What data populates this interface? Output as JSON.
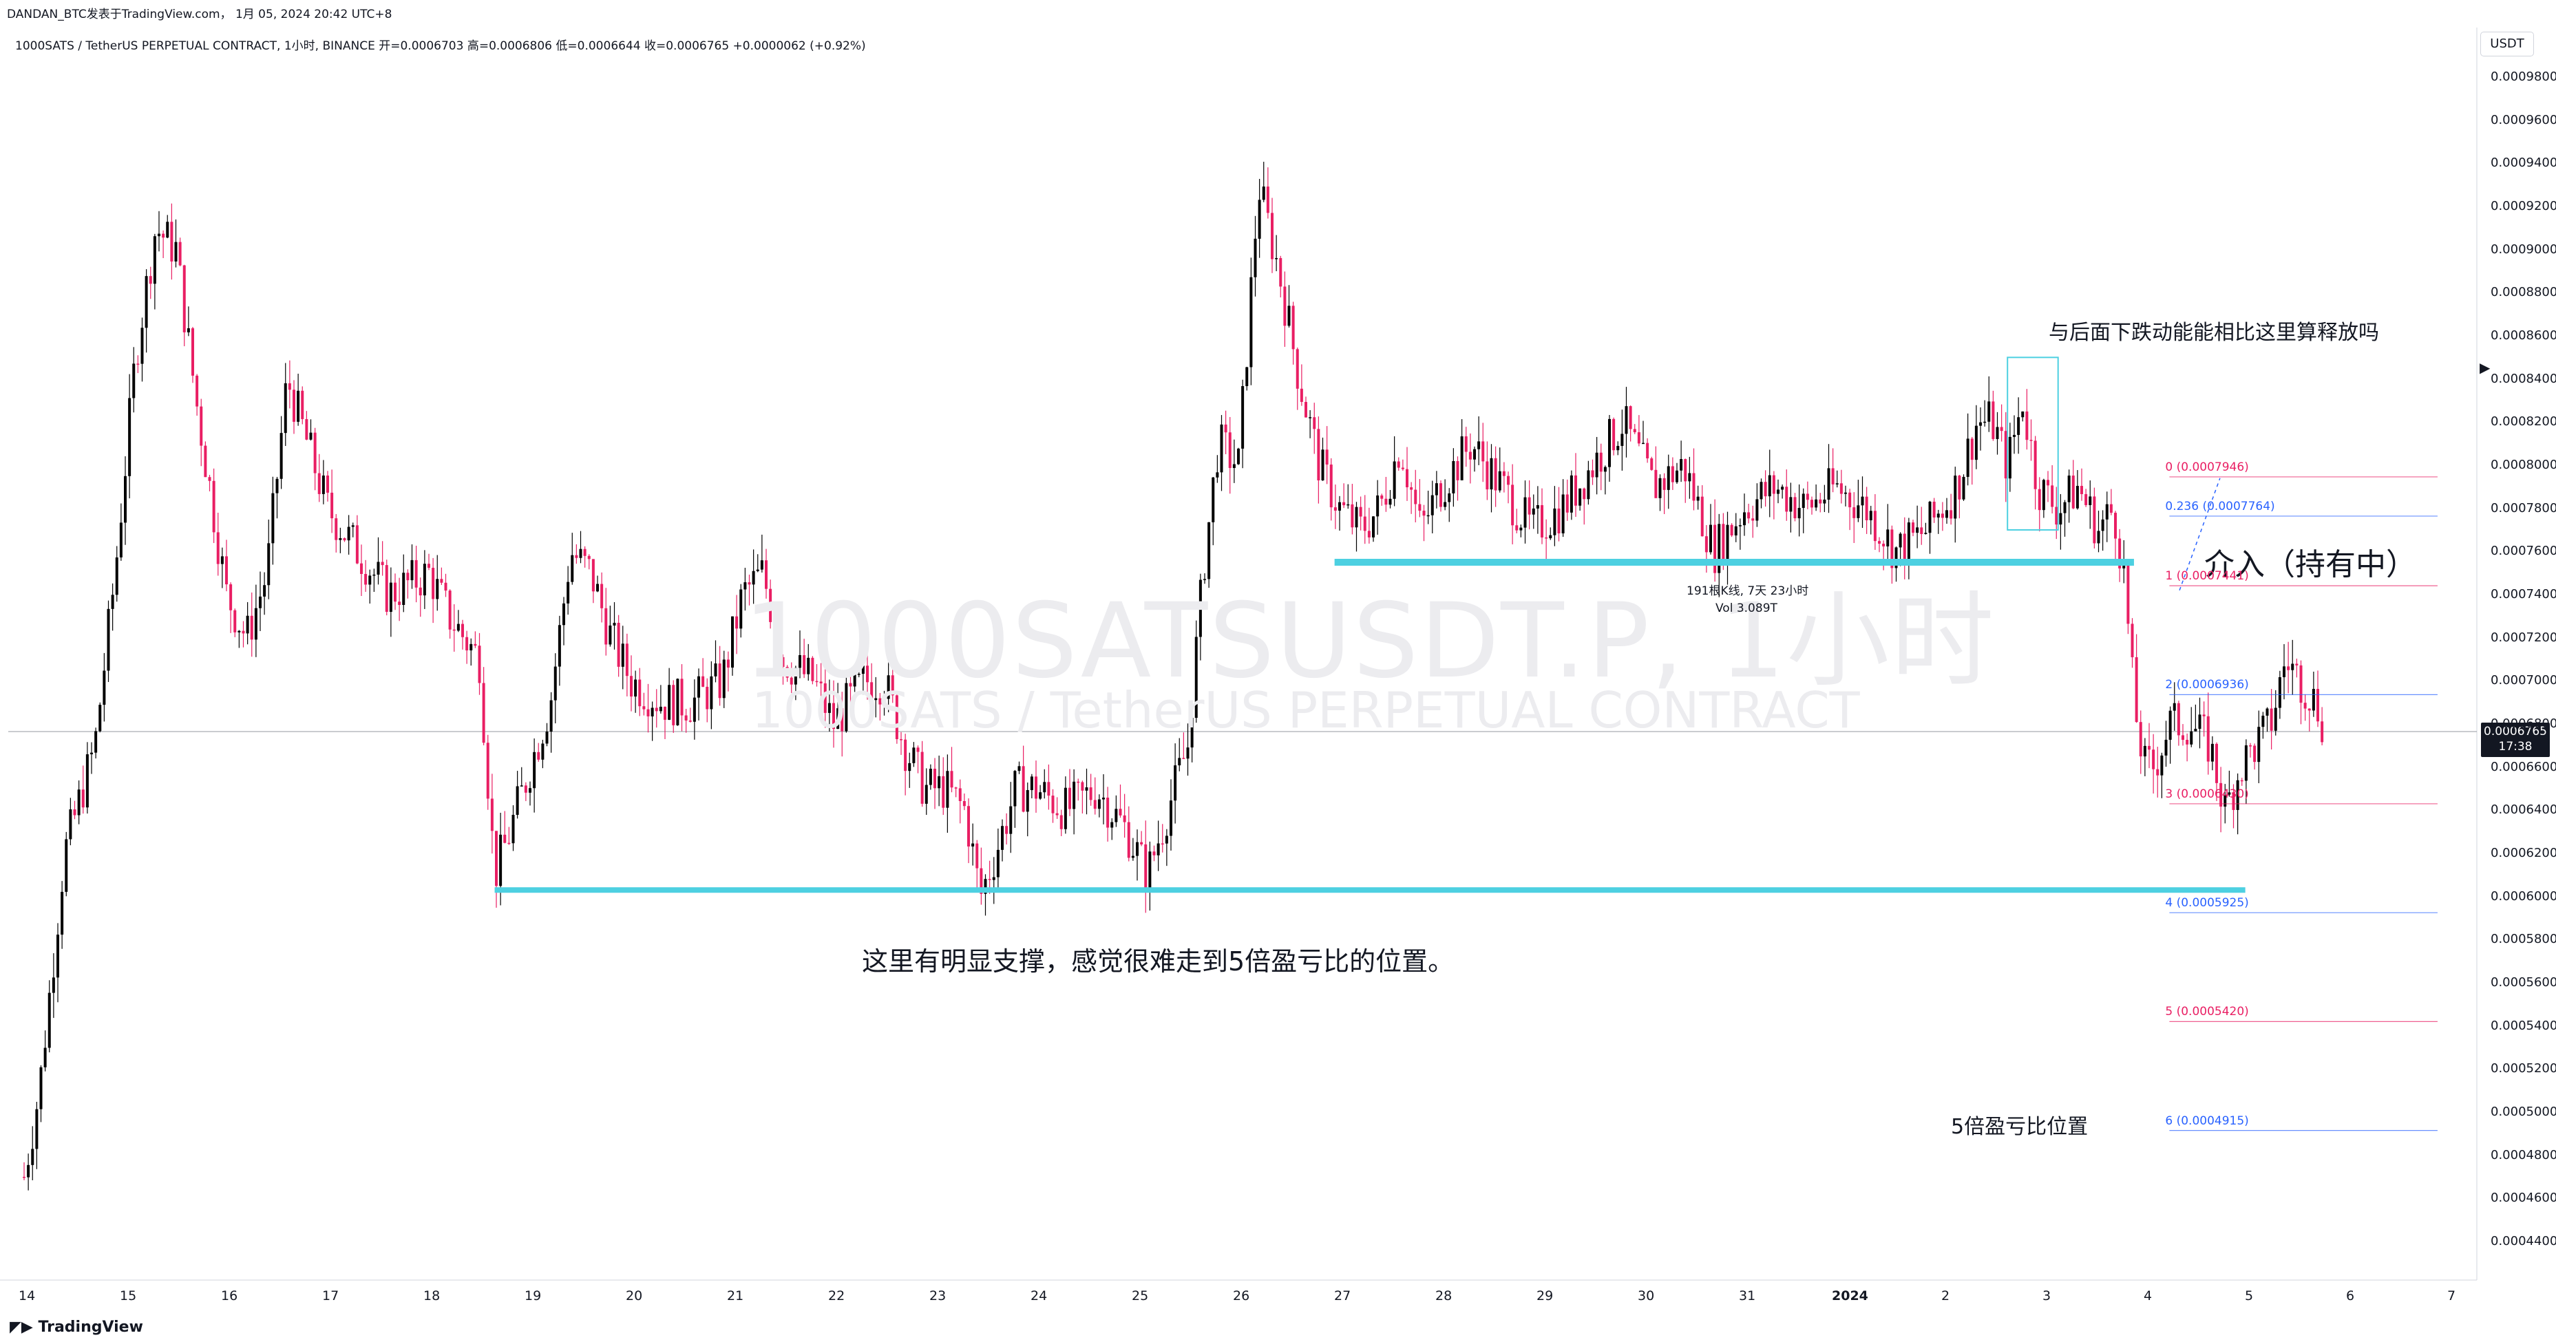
{
  "header": {
    "author_line": "DANDAN_BTC发表于TradingView.com， 1月 05, 2024 20:42 UTC+8",
    "symbol_line": "1000SATS / TetherUS PERPETUAL CONTRACT, 1小时, BINANCE  开=0.0006703  高=0.0006806  低=0.0006644  收=0.0006765  +0.0000062 (+0.92%)"
  },
  "watermark": {
    "symbol": "1000SATSUSDT.P, 1小时",
    "description": "1000SATS / TetherUS PERPETUAL CONTRACT"
  },
  "currency_button": "USDT",
  "current_price": {
    "value": "0.0006765",
    "countdown": "17:38"
  },
  "branding": "TradingView",
  "annotations": {
    "support_note": "这里有明显支撑，感觉很难走到5倍盈亏比的位置。",
    "release_question": "与后面下跌动能能相比这里算释放吗",
    "entry_note": "介入（持有中）",
    "rr5_note": "5倍盈亏比位置",
    "range_info_bars": "191根K线, 7天 23小时",
    "range_info_vol": "Vol 3.089T"
  },
  "colors": {
    "up_candle": "#000000",
    "down_candle": "#e91e63",
    "support_line": "#4dd0e1",
    "fib_blue": "#2962ff",
    "fib_red": "#e91e63",
    "grid": "#e0e3eb"
  },
  "chart_data": {
    "type": "candlestick",
    "series_name": "1000SATSUSDT.P",
    "timeframe": "1小时",
    "y_axis": {
      "range": [
        0.00043,
        0.00099
      ],
      "ticks": [
        "0.0009800",
        "0.0009600",
        "0.0009400",
        "0.0009200",
        "0.0009000",
        "0.0008800",
        "0.0008600",
        "0.0008400",
        "0.0008200",
        "0.0008000",
        "0.0007800",
        "0.0007600",
        "0.0007400",
        "0.0007200",
        "0.0007000",
        "0.0006800",
        "0.0006600",
        "0.0006400",
        "0.0006200",
        "0.0006000",
        "0.0005800",
        "0.0005600",
        "0.0005400",
        "0.0005200",
        "0.0005000",
        "0.0004800",
        "0.0004600",
        "0.0004400"
      ]
    },
    "x_axis": {
      "ticks": [
        "14",
        "15",
        "16",
        "17",
        "18",
        "19",
        "20",
        "21",
        "22",
        "23",
        "24",
        "25",
        "26",
        "27",
        "28",
        "29",
        "30",
        "31",
        "2024",
        "2",
        "3",
        "4",
        "5",
        "6",
        "7"
      ]
    },
    "price_path": [
      [
        0,
        0.00047
      ],
      [
        0.15,
        0.00051
      ],
      [
        0.4,
        0.00062
      ],
      [
        0.7,
        0.00067
      ],
      [
        0.9,
        0.00075
      ],
      [
        1.1,
        0.00085
      ],
      [
        1.3,
        0.00091
      ],
      [
        1.5,
        0.0009
      ],
      [
        1.7,
        0.00083
      ],
      [
        2.0,
        0.00074
      ],
      [
        2.2,
        0.00072
      ],
      [
        2.4,
        0.00075
      ],
      [
        2.6,
        0.00084
      ],
      [
        2.8,
        0.00081
      ],
      [
        3.0,
        0.00078
      ],
      [
        3.3,
        0.00076
      ],
      [
        3.6,
        0.00074
      ],
      [
        4.0,
        0.00075
      ],
      [
        4.2,
        0.00073
      ],
      [
        4.5,
        0.00071
      ],
      [
        4.65,
        0.00061
      ],
      [
        4.8,
        0.00063
      ],
      [
        5.0,
        0.00066
      ],
      [
        5.2,
        0.00069
      ],
      [
        5.4,
        0.00076
      ],
      [
        5.6,
        0.00075
      ],
      [
        5.8,
        0.00072
      ],
      [
        6.0,
        0.0007
      ],
      [
        6.3,
        0.00069
      ],
      [
        6.6,
        0.00069
      ],
      [
        6.9,
        0.0007
      ],
      [
        7.1,
        0.00074
      ],
      [
        7.3,
        0.00075
      ],
      [
        7.5,
        0.00071
      ],
      [
        7.8,
        0.0007
      ],
      [
        8.0,
        0.00068
      ],
      [
        8.3,
        0.0007
      ],
      [
        8.5,
        0.0007
      ],
      [
        8.7,
        0.00067
      ],
      [
        8.9,
        0.00065
      ],
      [
        9.1,
        0.00065
      ],
      [
        9.3,
        0.00064
      ],
      [
        9.45,
        0.0006
      ],
      [
        9.6,
        0.00062
      ],
      [
        9.8,
        0.00065
      ],
      [
        10.0,
        0.00065
      ],
      [
        10.3,
        0.00064
      ],
      [
        10.6,
        0.00065
      ],
      [
        10.9,
        0.00063
      ],
      [
        11.1,
        0.00061
      ],
      [
        11.3,
        0.00064
      ],
      [
        11.5,
        0.00067
      ],
      [
        11.65,
        0.00075
      ],
      [
        11.8,
        0.00081
      ],
      [
        12.0,
        0.0008
      ],
      [
        12.2,
        0.00093
      ],
      [
        12.4,
        0.00089
      ],
      [
        12.6,
        0.00084
      ],
      [
        12.8,
        0.0008
      ],
      [
        13.0,
        0.00078
      ],
      [
        13.2,
        0.00077
      ],
      [
        13.4,
        0.00078
      ],
      [
        13.6,
        0.00081
      ],
      [
        13.8,
        0.00077
      ],
      [
        14.0,
        0.00079
      ],
      [
        14.3,
        0.00081
      ],
      [
        14.6,
        0.00079
      ],
      [
        14.9,
        0.00077
      ],
      [
        15.2,
        0.00078
      ],
      [
        15.5,
        0.0008
      ],
      [
        15.8,
        0.00082
      ],
      [
        16.1,
        0.00079
      ],
      [
        16.4,
        0.0008
      ],
      [
        16.7,
        0.00076
      ],
      [
        17.0,
        0.00078
      ],
      [
        17.3,
        0.00079
      ],
      [
        17.6,
        0.00078
      ],
      [
        17.9,
        0.00079
      ],
      [
        18.2,
        0.00078
      ],
      [
        18.5,
        0.00076
      ],
      [
        18.8,
        0.00077
      ],
      [
        19.1,
        0.00079
      ],
      [
        19.3,
        0.00082
      ],
      [
        19.45,
        0.00082
      ],
      [
        19.6,
        0.0008
      ],
      [
        19.75,
        0.00083
      ],
      [
        19.9,
        0.00079
      ],
      [
        20.1,
        0.00078
      ],
      [
        20.3,
        0.00079
      ],
      [
        20.5,
        0.00077
      ],
      [
        20.65,
        0.00078
      ],
      [
        20.75,
        0.00075
      ],
      [
        20.85,
        0.00069
      ],
      [
        20.95,
        0.00066
      ],
      [
        21.05,
        0.00066
      ],
      [
        21.2,
        0.00068
      ],
      [
        21.4,
        0.00068
      ],
      [
        21.6,
        0.00067
      ],
      [
        21.75,
        0.00064
      ],
      [
        21.9,
        0.00066
      ],
      [
        22.05,
        0.00067
      ],
      [
        22.2,
        0.00068
      ],
      [
        22.35,
        0.00071
      ],
      [
        22.5,
        0.0007
      ],
      [
        22.65,
        0.00069
      ],
      [
        22.75,
        0.000676
      ]
    ],
    "current_price": 0.0006765,
    "support_lines": [
      {
        "price": 0.000755,
        "label": ""
      },
      {
        "price": 0.000603,
        "label": ""
      }
    ],
    "fib_levels": [
      {
        "label": "0 (0.0007946)",
        "price": 0.0007946
      },
      {
        "label": "0.236 (0.0007764)",
        "price": 0.0007764
      },
      {
        "label": "1 (0.0007441)",
        "price": 0.0007441
      },
      {
        "label": "2 (0.0006936)",
        "price": 0.0006936
      },
      {
        "label": "3 (0.0006430)",
        "price": 0.000643
      },
      {
        "label": "4 (0.0005925)",
        "price": 0.0005925
      },
      {
        "label": "5 (0.0005420)",
        "price": 0.000542
      },
      {
        "label": "6 (0.0004915)",
        "price": 0.0004915
      }
    ]
  }
}
